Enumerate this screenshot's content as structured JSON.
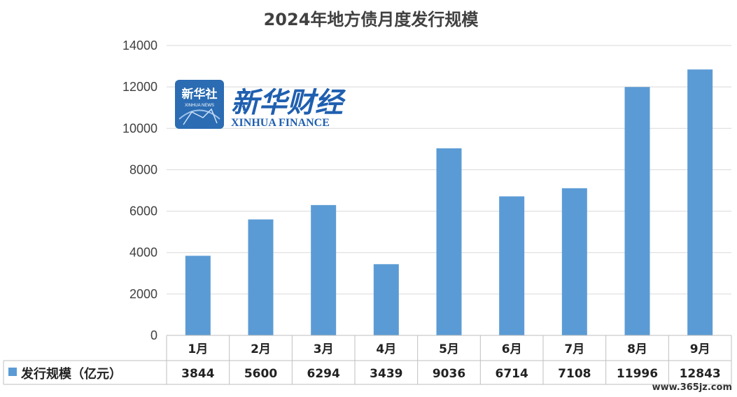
{
  "chart_data": {
    "type": "bar",
    "title": "2024年地方债月度发行规模",
    "categories": [
      "1月",
      "2月",
      "3月",
      "4月",
      "5月",
      "6月",
      "7月",
      "8月",
      "9月"
    ],
    "series": [
      {
        "name": "发行规模（亿元）",
        "values": [
          3844,
          5600,
          6294,
          3439,
          9036,
          6714,
          7108,
          11996,
          12843
        ]
      }
    ],
    "ylim": [
      0,
      14000
    ],
    "yticks": [
      "0",
      "2000",
      "4000",
      "6000",
      "8000",
      "10000",
      "12000",
      "14000"
    ],
    "grid": true,
    "legend": "data-table-left",
    "bar_color": "#5b9bd5"
  },
  "logo": {
    "badge_text": "新华社",
    "badge_sub": "XINHUA NEWS",
    "brand_cn": "新华财经",
    "brand_en": "XINHUA FINANCE"
  },
  "watermark": "www.365jz.com"
}
